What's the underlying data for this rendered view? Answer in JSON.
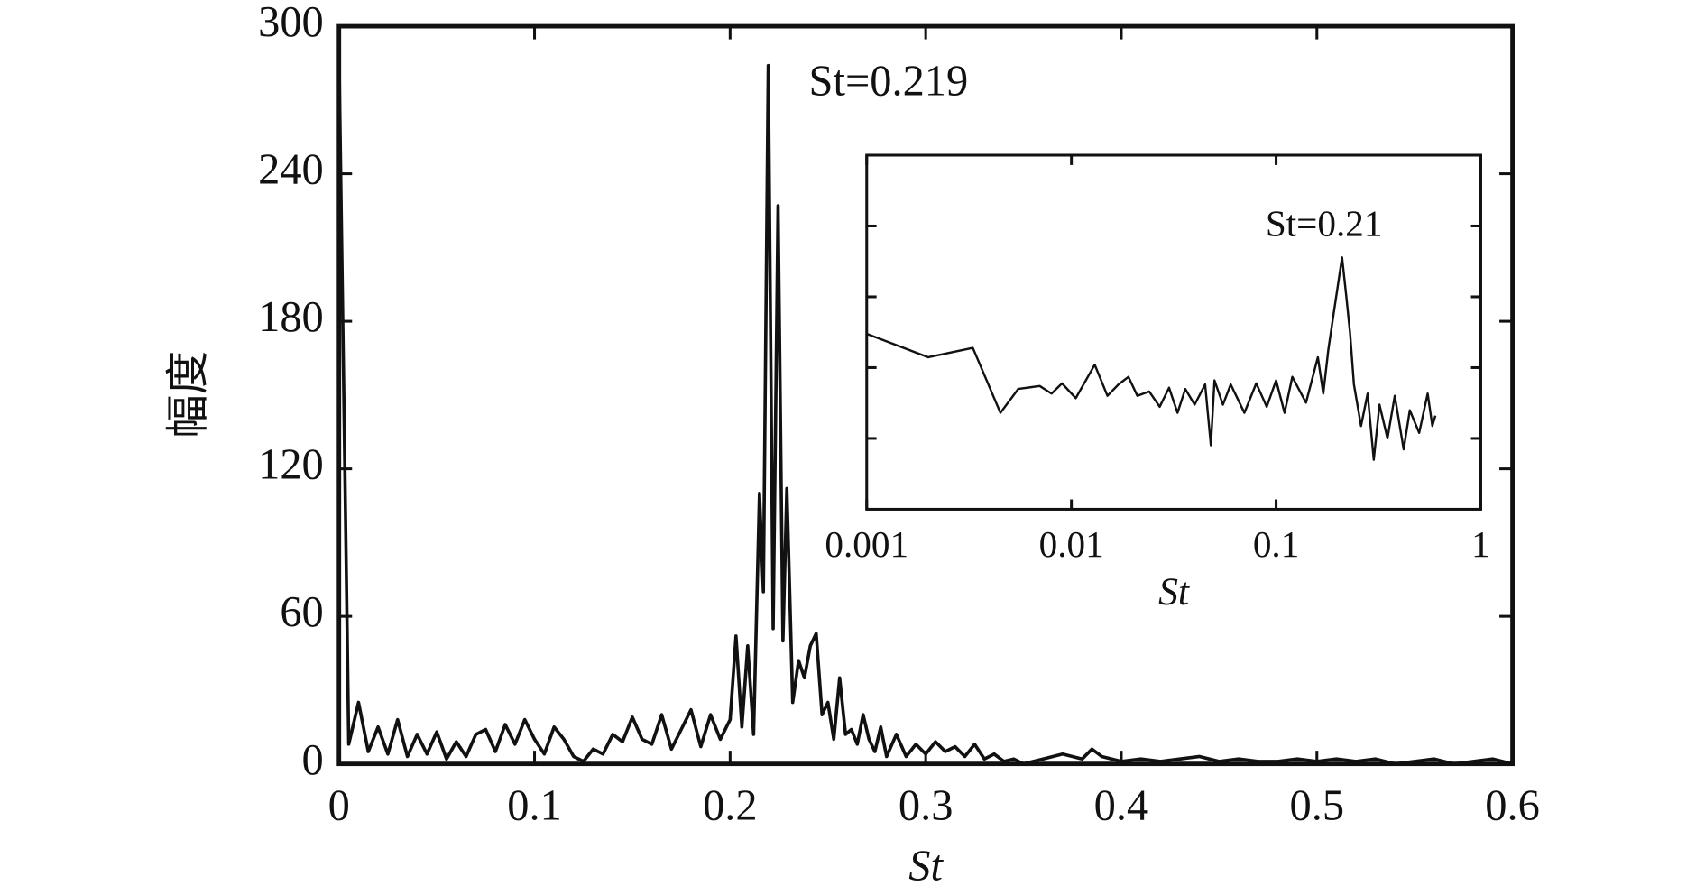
{
  "chart_data": [
    {
      "type": "line",
      "xlabel": "St",
      "ylabel": "幅度",
      "annotation": "St=0.219",
      "color": "#111111",
      "xlim": [
        0,
        0.6
      ],
      "ylim": [
        0,
        300
      ],
      "xticks": [
        0,
        0.1,
        0.2,
        0.3,
        0.4,
        0.5,
        0.6
      ],
      "yticks": [
        0,
        60,
        120,
        180,
        240,
        300
      ],
      "x": [
        0,
        0.005,
        0.01,
        0.015,
        0.02,
        0.025,
        0.03,
        0.035,
        0.04,
        0.045,
        0.05,
        0.055,
        0.06,
        0.065,
        0.07,
        0.075,
        0.08,
        0.085,
        0.09,
        0.095,
        0.1,
        0.105,
        0.11,
        0.115,
        0.12,
        0.125,
        0.13,
        0.135,
        0.14,
        0.145,
        0.15,
        0.155,
        0.16,
        0.165,
        0.17,
        0.175,
        0.18,
        0.185,
        0.19,
        0.195,
        0.2,
        0.203,
        0.206,
        0.209,
        0.212,
        0.215,
        0.217,
        0.2195,
        0.222,
        0.2245,
        0.227,
        0.229,
        0.232,
        0.235,
        0.238,
        0.241,
        0.244,
        0.247,
        0.25,
        0.253,
        0.256,
        0.259,
        0.262,
        0.265,
        0.268,
        0.271,
        0.274,
        0.277,
        0.28,
        0.285,
        0.29,
        0.295,
        0.3,
        0.305,
        0.31,
        0.315,
        0.32,
        0.325,
        0.33,
        0.335,
        0.34,
        0.345,
        0.35,
        0.36,
        0.37,
        0.38,
        0.385,
        0.39,
        0.4,
        0.41,
        0.42,
        0.43,
        0.44,
        0.45,
        0.46,
        0.47,
        0.48,
        0.49,
        0.5,
        0.51,
        0.52,
        0.53,
        0.54,
        0.55,
        0.56,
        0.57,
        0.58,
        0.59,
        0.6
      ],
      "values": [
        290,
        8,
        25,
        5,
        15,
        4,
        18,
        3,
        12,
        4,
        13,
        2,
        9,
        3,
        12,
        14,
        5,
        16,
        8,
        18,
        10,
        4,
        15,
        10,
        3,
        1,
        6,
        4,
        12,
        9,
        19,
        10,
        8,
        20,
        6,
        14,
        22,
        7,
        20,
        10,
        18,
        52,
        15,
        48,
        12,
        110,
        70,
        284,
        55,
        227,
        50,
        112,
        25,
        42,
        35,
        48,
        53,
        20,
        25,
        10,
        35,
        12,
        14,
        8,
        20,
        10,
        5,
        15,
        3,
        12,
        3,
        8,
        4,
        9,
        5,
        7,
        3,
        8,
        2,
        4,
        1,
        2,
        0,
        2,
        4,
        2,
        6,
        3,
        1,
        2,
        1,
        2,
        3,
        1,
        2,
        1,
        1,
        2,
        1,
        2,
        1,
        2,
        0,
        1,
        2,
        0,
        1,
        2,
        0
      ]
    },
    {
      "type": "line",
      "xlabel": "St",
      "annotation": "St=0.21",
      "color": "#111111",
      "xscale": "log",
      "yscale": "log",
      "xlim": [
        0.001,
        1
      ],
      "ylim": [
        0.001,
        100
      ],
      "xticks": [
        0.001,
        0.01,
        0.1,
        1
      ],
      "yticks": [
        0.01,
        0.1,
        1,
        10
      ],
      "ytick_labels": false,
      "x": [
        0.001,
        0.002,
        0.0033,
        0.0045,
        0.0055,
        0.007,
        0.008,
        0.009,
        0.0105,
        0.013,
        0.015,
        0.017,
        0.019,
        0.021,
        0.024,
        0.027,
        0.03,
        0.033,
        0.036,
        0.04,
        0.045,
        0.048,
        0.05,
        0.055,
        0.06,
        0.07,
        0.08,
        0.09,
        0.1,
        0.11,
        0.12,
        0.14,
        0.16,
        0.17,
        0.18,
        0.19,
        0.2,
        0.21,
        0.22,
        0.23,
        0.24,
        0.26,
        0.28,
        0.3,
        0.32,
        0.35,
        0.38,
        0.42,
        0.45,
        0.5,
        0.55,
        0.58,
        0.6
      ],
      "values": [
        0.3,
        0.14,
        0.19,
        0.023,
        0.05,
        0.055,
        0.043,
        0.06,
        0.037,
        0.11,
        0.04,
        0.058,
        0.074,
        0.04,
        0.046,
        0.028,
        0.052,
        0.023,
        0.05,
        0.03,
        0.058,
        0.008,
        0.066,
        0.03,
        0.058,
        0.023,
        0.06,
        0.028,
        0.066,
        0.023,
        0.074,
        0.032,
        0.14,
        0.043,
        0.18,
        0.52,
        1.4,
        3.6,
        1.05,
        0.3,
        0.058,
        0.015,
        0.043,
        0.005,
        0.03,
        0.01,
        0.04,
        0.007,
        0.025,
        0.012,
        0.043,
        0.015,
        0.021
      ]
    }
  ]
}
